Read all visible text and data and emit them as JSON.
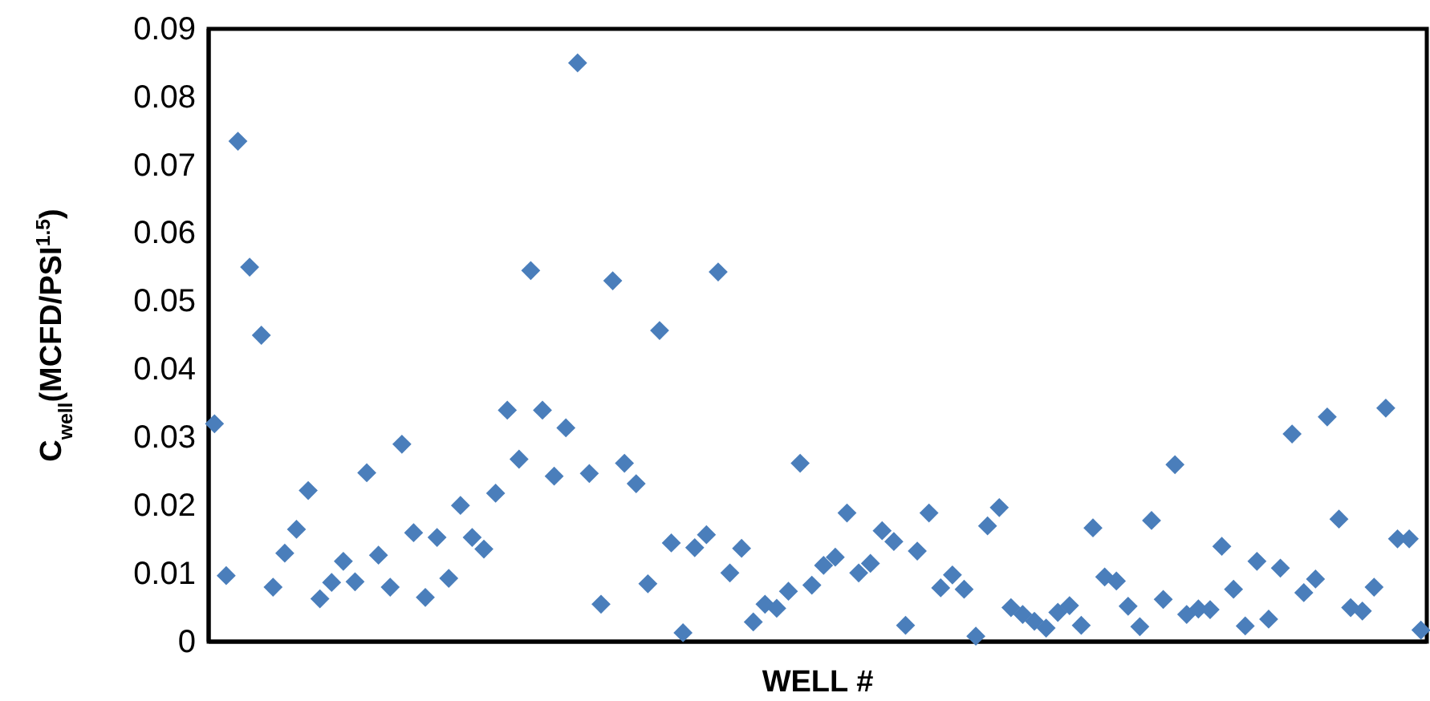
{
  "chart_data": {
    "type": "scatter",
    "xlabel": "WELL #",
    "ylabel": "C$_{well}$(MCFD/PSI$^{1.5}$)",
    "marker": "diamond",
    "ylim": [
      0,
      0.09
    ],
    "yticks": [
      0,
      0.01,
      0.02,
      0.03,
      0.04,
      0.05,
      0.06,
      0.07,
      0.08,
      0.09
    ],
    "tick_labels": "y",
    "grid": false,
    "categories": [
      null,
      null,
      null,
      null,
      null,
      null,
      null,
      null,
      null,
      null,
      null,
      null,
      null,
      null,
      null,
      null,
      null,
      null,
      null,
      null,
      null,
      null,
      null,
      null,
      null,
      null,
      null,
      null,
      null,
      null,
      null,
      null,
      null,
      null,
      null,
      null,
      null,
      null,
      null,
      null,
      null,
      null,
      null,
      null,
      null,
      null,
      null,
      null,
      null,
      null,
      null,
      null,
      null,
      null,
      null,
      null,
      null,
      null,
      null,
      null,
      null,
      null,
      null,
      null,
      null,
      null,
      null,
      null,
      null,
      null,
      null,
      null,
      null,
      null,
      null,
      null,
      null,
      null,
      null,
      null,
      null,
      null,
      null,
      null,
      null,
      null,
      null,
      null,
      null,
      null,
      null,
      null,
      null,
      null,
      null,
      null,
      null,
      null,
      null,
      null,
      null,
      null,
      null,
      null
    ],
    "series": [
      {
        "color": "#4a7ebb",
        "values": [
          0.032,
          0.0097,
          0.0735,
          0.055,
          0.045,
          0.008,
          0.013,
          0.0165,
          0.0222,
          0.0063,
          0.0087,
          0.0118,
          0.0088,
          0.0248,
          0.0127,
          0.008,
          0.029,
          0.016,
          0.0065,
          0.0153,
          0.0093,
          0.02,
          0.0153,
          0.0136,
          0.0218,
          0.034,
          0.0268,
          0.0545,
          0.034,
          0.0243,
          0.0314,
          0.085,
          0.0247,
          0.0055,
          0.053,
          0.0262,
          0.0232,
          0.0085,
          0.0457,
          0.0145,
          0.0013,
          0.0138,
          0.0157,
          0.0543,
          0.0101,
          0.0137,
          0.0029,
          0.0055,
          0.0049,
          0.0074,
          0.0262,
          0.0083,
          0.0112,
          0.0124,
          0.0189,
          0.0101,
          0.0115,
          0.0163,
          0.0147,
          0.0024,
          0.0133,
          0.0189,
          0.0079,
          0.0098,
          0.0077,
          0.0008,
          0.017,
          0.0197,
          0.005,
          0.004,
          0.003,
          0.002,
          0.0043,
          0.0053,
          0.0024,
          0.0167,
          0.0095,
          0.0089,
          0.0052,
          0.0022,
          0.0178,
          0.0062,
          0.026,
          0.004,
          0.0048,
          0.0047,
          0.014,
          0.0077,
          0.0023,
          0.0118,
          0.0033,
          0.0108,
          0.0305,
          0.0072,
          0.0092,
          0.033,
          0.018,
          0.005,
          0.0045,
          0.008,
          0.0343,
          0.0151,
          0.0151,
          0.0017
        ]
      }
    ]
  }
}
